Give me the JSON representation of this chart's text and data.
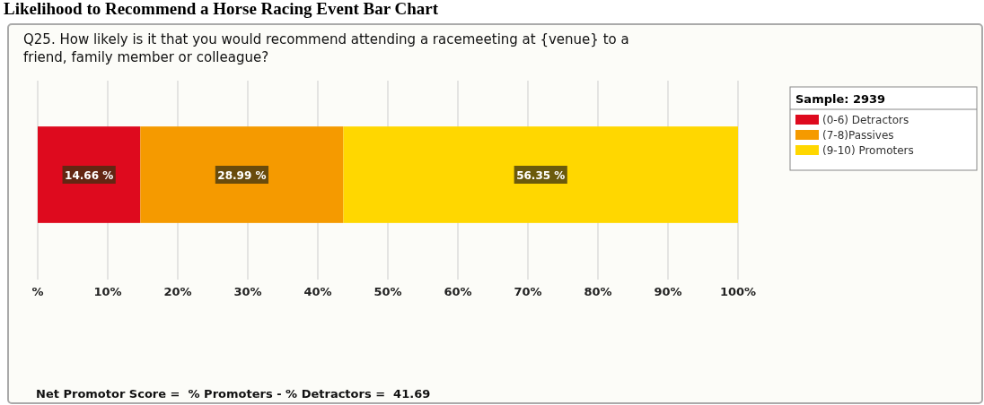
{
  "chart_data": {
    "type": "bar",
    "orientation": "horizontal",
    "stacked": true,
    "title": "Likelihood to Recommend a Horse Racing Event Bar Chart",
    "subtitle": "Q25. How likely is it that you would recommend attending a racemeeting at {venue} to a friend, family member or colleague?",
    "categories": [
      null
    ],
    "series": [
      {
        "name": "(0-6) Detractors",
        "color": "#de0a1e",
        "values": [
          14.66
        ],
        "value_labels": [
          "14.66 %"
        ]
      },
      {
        "name": "(7-8)Passives",
        "color": "#f59a00",
        "values": [
          28.99
        ],
        "value_labels": [
          "28.99 %"
        ]
      },
      {
        "name": "(9-10) Promoters",
        "color": "#ffd700",
        "values": [
          56.35
        ],
        "value_labels": [
          "56.35 %"
        ]
      }
    ],
    "xlim": [
      0,
      100
    ],
    "xticks": [
      {
        "value": 0,
        "label": "%"
      },
      {
        "value": 10,
        "label": "10%"
      },
      {
        "value": 20,
        "label": "20%"
      },
      {
        "value": 30,
        "label": "30%"
      },
      {
        "value": 40,
        "label": "40%"
      },
      {
        "value": 50,
        "label": "50%"
      },
      {
        "value": 60,
        "label": "60%"
      },
      {
        "value": 70,
        "label": "70%"
      },
      {
        "value": 80,
        "label": "80%"
      },
      {
        "value": 90,
        "label": "90%"
      },
      {
        "value": 100,
        "label": "100%"
      }
    ],
    "grid": "x",
    "legend": "top right",
    "legend_title": "Sample: 2939",
    "annotations": [
      "Net Promotor Score =  % Promoters - % Detractors =  41.69"
    ]
  }
}
